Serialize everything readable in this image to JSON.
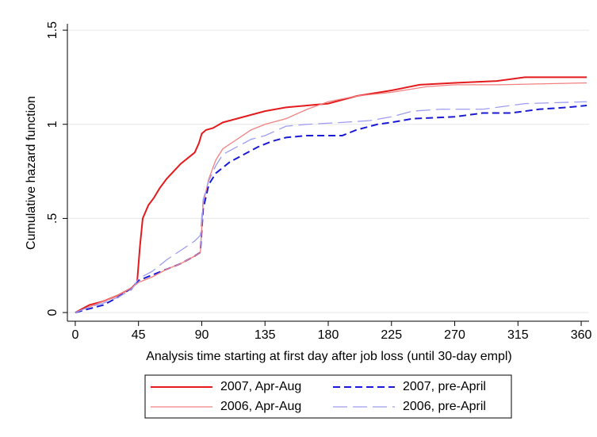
{
  "chart_data": {
    "type": "line",
    "x_label": "Analysis time starting at first day after job loss (until 30-day empl)",
    "y_label": "Cumulative hazard function",
    "xlim": [
      -5.6,
      365.6
    ],
    "ylim": [
      -0.046,
      1.534
    ],
    "xticks": [
      0,
      45,
      90,
      135,
      180,
      225,
      270,
      315,
      360
    ],
    "yticks": [
      0,
      {
        "value": 0.5,
        "label": ".5"
      },
      1,
      1.5
    ],
    "grid": true,
    "legend": "bottom",
    "series": [
      {
        "name": "2007, Apr-Aug",
        "color": "#e41a1c",
        "dash": "solid",
        "width": 2,
        "x": [
          0,
          10,
          20,
          30,
          40,
          44,
          46,
          48,
          52,
          56,
          60,
          65,
          70,
          75,
          80,
          85,
          88,
          90,
          93,
          98,
          105,
          115,
          125,
          135,
          150,
          165,
          180,
          200,
          225,
          245,
          270,
          300,
          320,
          364
        ],
        "values": [
          0,
          0.04,
          0.06,
          0.09,
          0.13,
          0.16,
          0.35,
          0.5,
          0.57,
          0.61,
          0.66,
          0.71,
          0.75,
          0.79,
          0.82,
          0.85,
          0.9,
          0.95,
          0.97,
          0.98,
          1.01,
          1.03,
          1.05,
          1.07,
          1.09,
          1.1,
          1.11,
          1.15,
          1.18,
          1.21,
          1.22,
          1.23,
          1.25,
          1.25
        ]
      },
      {
        "name": "2007, pre-April",
        "color": "#1a1ad6",
        "dash": "dash",
        "width": 2,
        "x": [
          0,
          10,
          20,
          30,
          40,
          45,
          55,
          65,
          75,
          85,
          89,
          91,
          95,
          100,
          110,
          120,
          130,
          140,
          150,
          165,
          190,
          200,
          215,
          225,
          240,
          270,
          290,
          310,
          330,
          350,
          364
        ],
        "values": [
          0,
          0.02,
          0.04,
          0.08,
          0.13,
          0.17,
          0.2,
          0.23,
          0.26,
          0.3,
          0.32,
          0.55,
          0.68,
          0.74,
          0.8,
          0.84,
          0.88,
          0.91,
          0.93,
          0.94,
          0.94,
          0.97,
          1.0,
          1.01,
          1.03,
          1.04,
          1.06,
          1.06,
          1.08,
          1.09,
          1.1
        ]
      },
      {
        "name": "2006, Apr-Aug",
        "color": "#f28080",
        "dash": "solid",
        "width": 1.3,
        "x": [
          0,
          10,
          20,
          30,
          40,
          45,
          55,
          65,
          75,
          85,
          89,
          91,
          95,
          100,
          105,
          115,
          125,
          135,
          150,
          165,
          180,
          200,
          225,
          250,
          270,
          300,
          364
        ],
        "values": [
          0,
          0.03,
          0.06,
          0.09,
          0.13,
          0.16,
          0.19,
          0.23,
          0.26,
          0.3,
          0.32,
          0.58,
          0.71,
          0.81,
          0.87,
          0.92,
          0.97,
          1.0,
          1.03,
          1.08,
          1.12,
          1.15,
          1.17,
          1.2,
          1.21,
          1.21,
          1.22
        ]
      },
      {
        "name": "2006, pre-April",
        "color": "#9c9cf0",
        "dash": "longdash",
        "width": 1.3,
        "x": [
          0,
          10,
          20,
          30,
          40,
          45,
          55,
          65,
          75,
          85,
          89,
          91,
          95,
          100,
          105,
          115,
          125,
          135,
          150,
          165,
          190,
          210,
          225,
          240,
          260,
          290,
          320,
          364
        ],
        "values": [
          0,
          0.03,
          0.05,
          0.08,
          0.12,
          0.18,
          0.22,
          0.28,
          0.33,
          0.38,
          0.41,
          0.6,
          0.7,
          0.78,
          0.84,
          0.88,
          0.92,
          0.94,
          0.99,
          1.0,
          1.01,
          1.02,
          1.04,
          1.07,
          1.08,
          1.08,
          1.11,
          1.12
        ]
      }
    ]
  }
}
